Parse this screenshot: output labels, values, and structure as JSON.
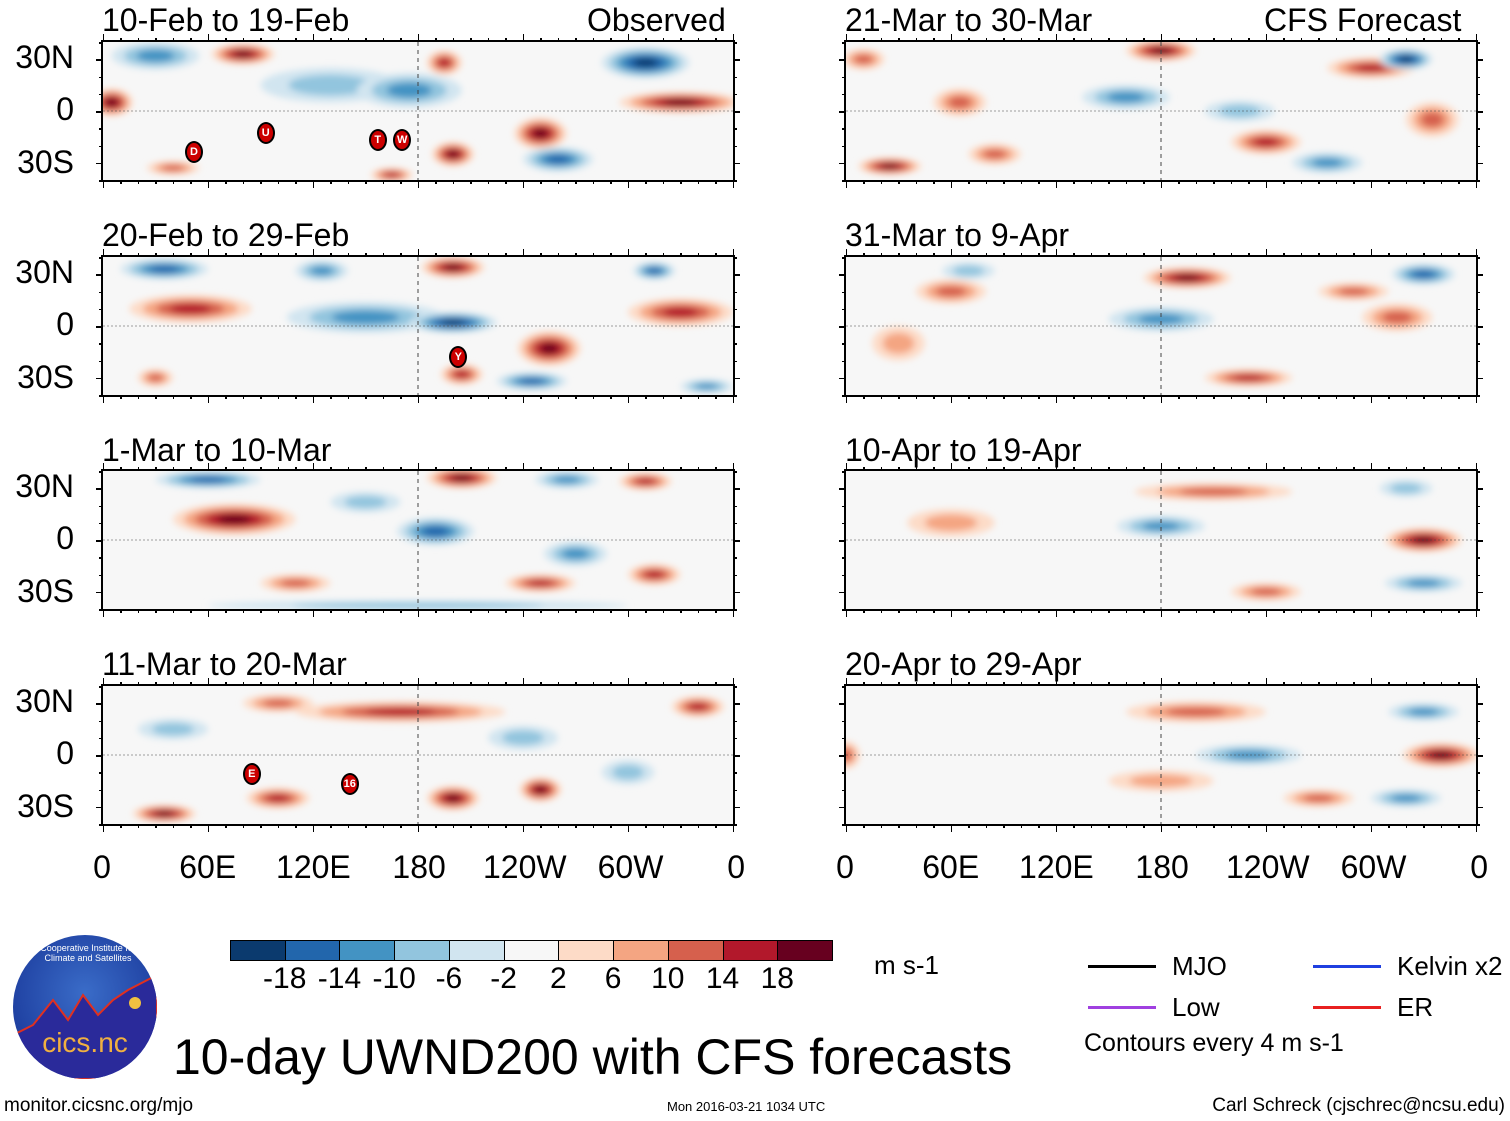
{
  "chart_data": {
    "type": "heatmap",
    "title": "10-day UWND200 with CFS forecasts",
    "units": "m s-1",
    "observed_label": "Observed",
    "forecast_label": "CFS Forecast",
    "lat_ticks": [
      "30N",
      "0",
      "30S"
    ],
    "lon_ticks": [
      "0",
      "60E",
      "120E",
      "180",
      "120W",
      "60W",
      "0"
    ],
    "panels": [
      {
        "title": "10-Feb to 19-Feb",
        "source": "Observed",
        "markers": [
          {
            "label": "D",
            "lon": 52,
            "lat": -24
          },
          {
            "label": "U",
            "lon": 93,
            "lat": -13
          },
          {
            "label": "T",
            "lon": 157,
            "lat": -17
          },
          {
            "label": "W",
            "lon": 171,
            "lat": -17
          }
        ]
      },
      {
        "title": "20-Feb to 29-Feb",
        "source": "Observed",
        "markers": [
          {
            "label": "Y",
            "lon": 203,
            "lat": -18
          }
        ]
      },
      {
        "title": "1-Mar to 10-Mar",
        "source": "Observed",
        "markers": []
      },
      {
        "title": "11-Mar to 20-Mar",
        "source": "Observed",
        "markers": [
          {
            "label": "E",
            "lon": 85,
            "lat": -11
          },
          {
            "label": "16",
            "lon": 141,
            "lat": -17
          }
        ]
      },
      {
        "title": "21-Mar to 30-Mar",
        "source": "CFS Forecast",
        "markers": []
      },
      {
        "title": "31-Mar to 9-Apr",
        "source": "CFS Forecast",
        "markers": []
      },
      {
        "title": "10-Apr to 19-Apr",
        "source": "CFS Forecast",
        "markers": []
      },
      {
        "title": "20-Apr to 29-Apr",
        "source": "CFS Forecast",
        "markers": []
      }
    ],
    "colorbar": {
      "labels": [
        "-18",
        "-14",
        "-10",
        "-6",
        "-2",
        "2",
        "6",
        "10",
        "14",
        "18"
      ],
      "colors": [
        "#0b3a6e",
        "#2266ac",
        "#4393c3",
        "#92c5de",
        "#d1e5f0",
        "#f7f7f7",
        "#fddbc7",
        "#f4a582",
        "#d6604d",
        "#b2182b",
        "#67001f"
      ]
    },
    "legend": [
      {
        "label": "MJO",
        "color": "#000000"
      },
      {
        "label": "Kelvin x2",
        "color": "#1f3fe0"
      },
      {
        "label": "Low",
        "color": "#a040e0"
      },
      {
        "label": "ER",
        "color": "#e82020"
      }
    ],
    "contour_note": "Contours every 4 m s-1"
  },
  "footer": {
    "url": "monitor.cicsnc.org/mjo",
    "timestamp": "Mon 2016-03-21 1034 UTC",
    "author": "Carl Schreck (cjschrec@ncsu.edu)"
  },
  "logo": {
    "text": "cics.nc",
    "ring": "Cooperative Institute for Climate and Satellites"
  }
}
